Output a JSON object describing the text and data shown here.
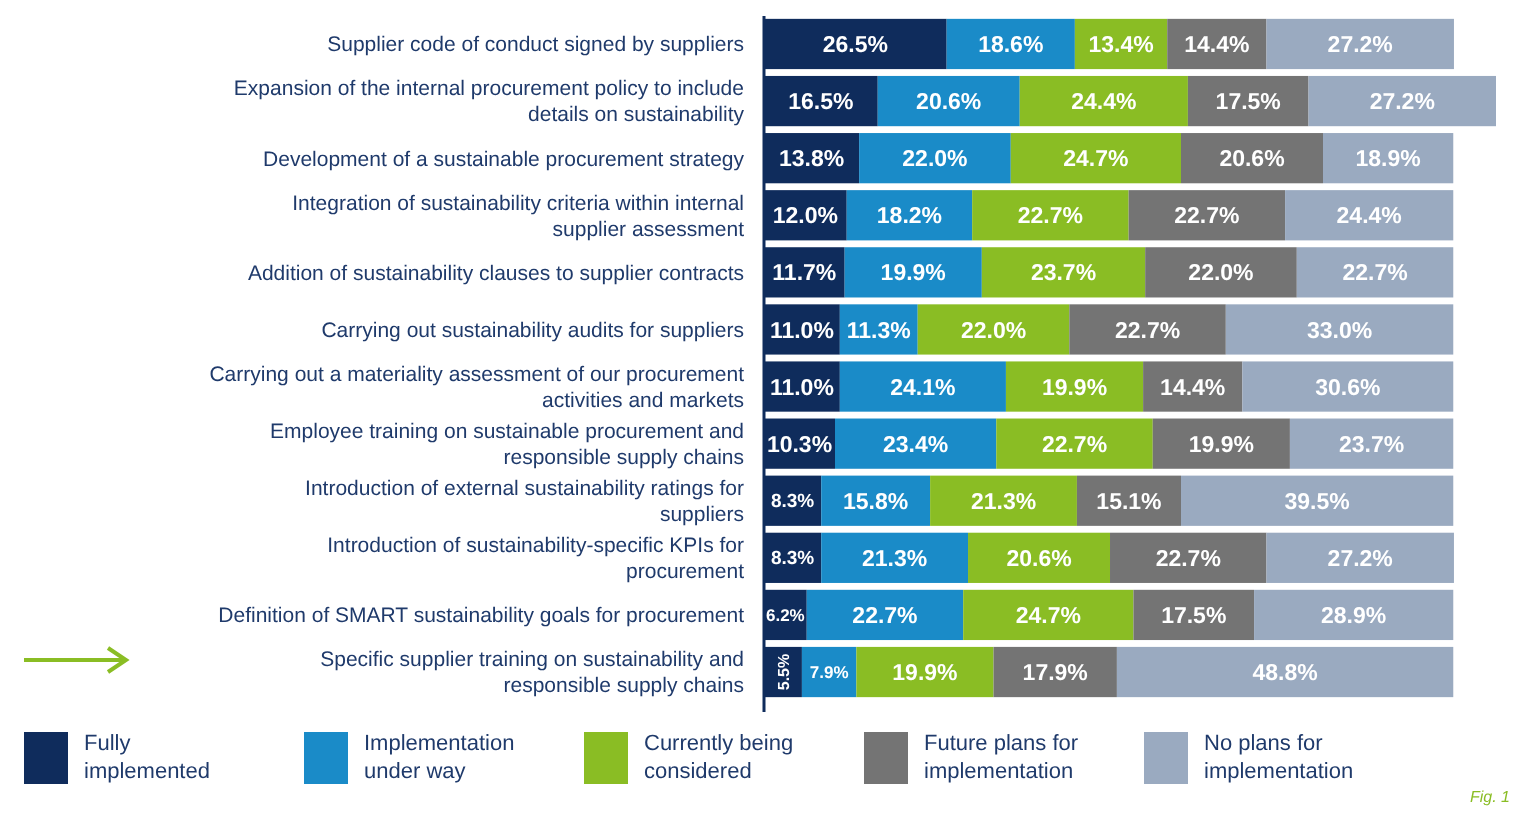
{
  "chart_data": {
    "type": "bar",
    "orientation": "horizontal",
    "stacked": true,
    "legend": "bottom",
    "tick_labels": "y",
    "xlim": [
      0,
      106.2
    ],
    "categories": [
      "Supplier code of conduct signed by suppliers",
      "Expansion of the internal procurement policy to include details on sustainability",
      "Development of a sustainable procurement strategy",
      "Integration of sustainability criteria within internal supplier assessment",
      "Addition of sustainability clauses to supplier contracts",
      "Carrying out sustainability audits for suppliers",
      "Carrying out a materiality assessment of our procurement activities and markets",
      "Employee training on sustainable procurement and responsible supply chains",
      "Introduction of external sustainability ratings for suppliers",
      "Introduction of sustainability-specific KPIs for procurement",
      "Definition of SMART sustainability goals for procurement",
      "Specific supplier training on sustainability and responsible supply chains"
    ],
    "series": [
      {
        "name": "Fully implemented",
        "color": "#0f2c5c",
        "values": [
          26.5,
          16.5,
          13.8,
          12.0,
          11.7,
          11.0,
          11.0,
          10.3,
          8.3,
          8.3,
          6.2,
          5.5
        ],
        "value_labels": [
          "26.5%",
          "16.5%",
          "13.8%",
          "12.0%",
          "11.7%",
          "11.0%",
          "11.0%",
          "10.3%",
          "8.3%",
          "8.3%",
          "6.2%",
          "5.5%"
        ]
      },
      {
        "name": "Implementation under way",
        "color": "#1a8bc8",
        "values": [
          18.6,
          20.6,
          22.0,
          18.2,
          19.9,
          11.3,
          24.1,
          23.4,
          15.8,
          21.3,
          22.7,
          7.9
        ],
        "value_labels": [
          "18.6%",
          "20.6%",
          "22.0%",
          "18.2%",
          "19.9%",
          "11.3%",
          "24.1%",
          "23.4%",
          "15.8%",
          "21.3%",
          "22.7%",
          "7.9%"
        ]
      },
      {
        "name": "Currently being considered",
        "color": "#8abd24",
        "values": [
          13.4,
          24.4,
          24.7,
          22.7,
          23.7,
          22.0,
          19.9,
          22.7,
          21.3,
          20.6,
          24.7,
          19.9
        ],
        "value_labels": [
          "13.4%",
          "24.4%",
          "24.7%",
          "22.7%",
          "23.7%",
          "22.0%",
          "19.9%",
          "22.7%",
          "21.3%",
          "20.6%",
          "24.7%",
          "19.9%"
        ]
      },
      {
        "name": "Future plans for implementation",
        "color": "#747474",
        "values": [
          14.4,
          17.5,
          20.6,
          22.7,
          22.0,
          22.7,
          14.4,
          19.9,
          15.1,
          22.7,
          17.5,
          17.9
        ],
        "value_labels": [
          "14.4%",
          "17.5%",
          "20.6%",
          "22.7%",
          "22.0%",
          "22.7%",
          "14.4%",
          "19.9%",
          "15.1%",
          "22.7%",
          "17.5%",
          "17.9%"
        ]
      },
      {
        "name": "No plans for implementation",
        "color": "#9aaac0",
        "values": [
          27.2,
          27.2,
          18.9,
          24.4,
          22.7,
          33.0,
          30.6,
          23.7,
          39.5,
          27.2,
          28.9,
          48.8
        ],
        "value_labels": [
          "27.2%",
          "27.2%",
          "18.9%",
          "24.4%",
          "22.7%",
          "33.0%",
          "30.6%",
          "23.7%",
          "39.5%",
          "27.2%",
          "28.9%",
          "48.8%"
        ]
      }
    ],
    "annotations": [
      "Fig. 1"
    ]
  }
}
